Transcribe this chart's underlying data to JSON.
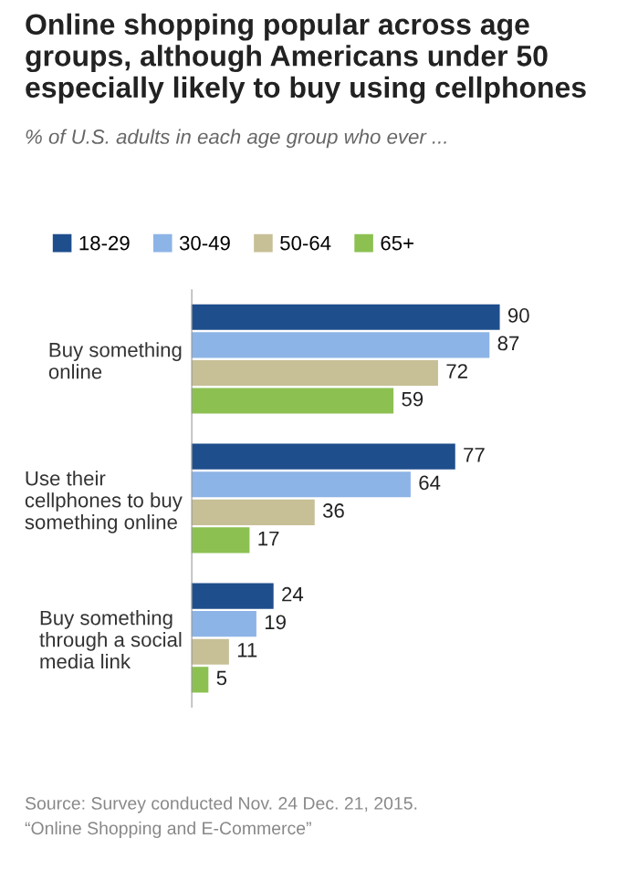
{
  "chart_data": {
    "type": "bar",
    "orientation": "horizontal",
    "title": "Online shopping popular across age groups, although Americans under 50 especially likely to buy using cellphones",
    "subtitle": "% of U.S. adults in each age group who ever ...",
    "categories": [
      "Buy something\nonline",
      "Use their\ncellphones to buy\nsomething online",
      "Buy something\nthrough a social\nmedia link"
    ],
    "series": [
      {
        "name": "18-29",
        "color": "#1f4e8c",
        "values": [
          90,
          77,
          24
        ]
      },
      {
        "name": "30-49",
        "color": "#8db4e6",
        "values": [
          87,
          64,
          19
        ]
      },
      {
        "name": "50-64",
        "color": "#c7bf96",
        "values": [
          72,
          36,
          11
        ]
      },
      {
        "name": "65+",
        "color": "#8cc152",
        "values": [
          59,
          17,
          5
        ]
      }
    ],
    "data_labels": true,
    "legend": "top",
    "grid": false,
    "annotations": [
      "Source: Survey conducted Nov. 24 Dec. 21, 2015.",
      "“Online Shopping and E-Commerce”"
    ]
  }
}
